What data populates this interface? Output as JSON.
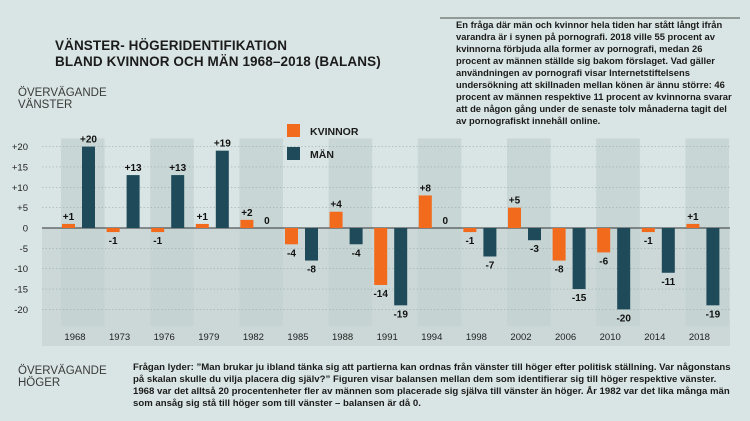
{
  "title_line1": "VÄNSTER- HÖGERIDENTIFIKATION",
  "title_line2": "BLAND KVINNOR OCH MÄN 1968–2018 (BALANS)",
  "top_axis_label_1": "ÖVERVÄGANDE",
  "top_axis_label_2": "VÄNSTER",
  "bottom_axis_label_1": "ÖVERVÄGANDE",
  "bottom_axis_label_2": "HÖGER",
  "sidebox_text": "En fråga där män och kvinnor hela tiden har stått långt ifrån varandra är i synen på pornografi. 2018 ville 55 procent av kvinnorna förbjuda alla former av pornografi, medan 26 procent av männen ställde sig bakom förslaget. Vad gäller användningen av pornografi visar Internetstiftelsens undersökning att skillnaden mellan könen är ännu större: 46 procent av männen respektive 11 procent av kvinnorna svarar att de någon gång under de senaste tolv månaderna tagit del av pornografiskt innehåll online.",
  "note_text": "Frågan lyder: ”Man brukar ju ibland tänka sig att partierna kan ordnas från vänster till höger efter politisk ställning. Var någonstans på skalan skulle du vilja placera dig själv?” Figuren visar balansen mellan dem som identifierar sig till höger respektive vänster. 1968 var det alltså 20 procentenheter fler av männen som placerade sig själva till vänster än höger. År 1982 var det lika många män som ansåg sig stå till höger som till vänster – balansen är då 0.",
  "colors": {
    "women": "#f26a1b",
    "men": "#1e4a5a",
    "background": "#d9e5e4",
    "band": "#c4d3d2",
    "negative_zone": "#cbd8d7"
  },
  "legend": {
    "women": "KVINNOR",
    "men": "MÄN"
  },
  "chart_data": {
    "type": "bar",
    "categories": [
      "1968",
      "1973",
      "1976",
      "1979",
      "1982",
      "1985",
      "1988",
      "1991",
      "1994",
      "1998",
      "2002",
      "2006",
      "2010",
      "2014",
      "2018"
    ],
    "series": [
      {
        "name": "KVINNOR",
        "values": [
          1,
          -1,
          -1,
          1,
          2,
          -4,
          4,
          -14,
          8,
          -1,
          5,
          -8,
          -6,
          -1,
          1
        ]
      },
      {
        "name": "MÄN",
        "values": [
          20,
          13,
          13,
          19,
          0,
          -8,
          -4,
          -19,
          0,
          -7,
          -3,
          -15,
          -20,
          -11,
          -19
        ]
      }
    ],
    "data_labels": {
      "KVINNOR": [
        "+1",
        "-1",
        "-1",
        "+1",
        "+2",
        "-4",
        "+4",
        "-14",
        "+8",
        "-1",
        "+5",
        "-8",
        "-6",
        "-1",
        "+1"
      ],
      "MÄN": [
        "+20",
        "+13",
        "+13",
        "+19",
        "0",
        "-8",
        "-4",
        "-19",
        "0",
        "-7",
        "-3",
        "-15",
        "-20",
        "-11",
        "-19"
      ]
    },
    "y_ticks": [
      "+20",
      "+15",
      "+10",
      "+5",
      "0",
      "-5",
      "-10",
      "-15",
      "-20"
    ],
    "ylim": [
      -25,
      22
    ],
    "grid": true,
    "legend_position": "center"
  }
}
